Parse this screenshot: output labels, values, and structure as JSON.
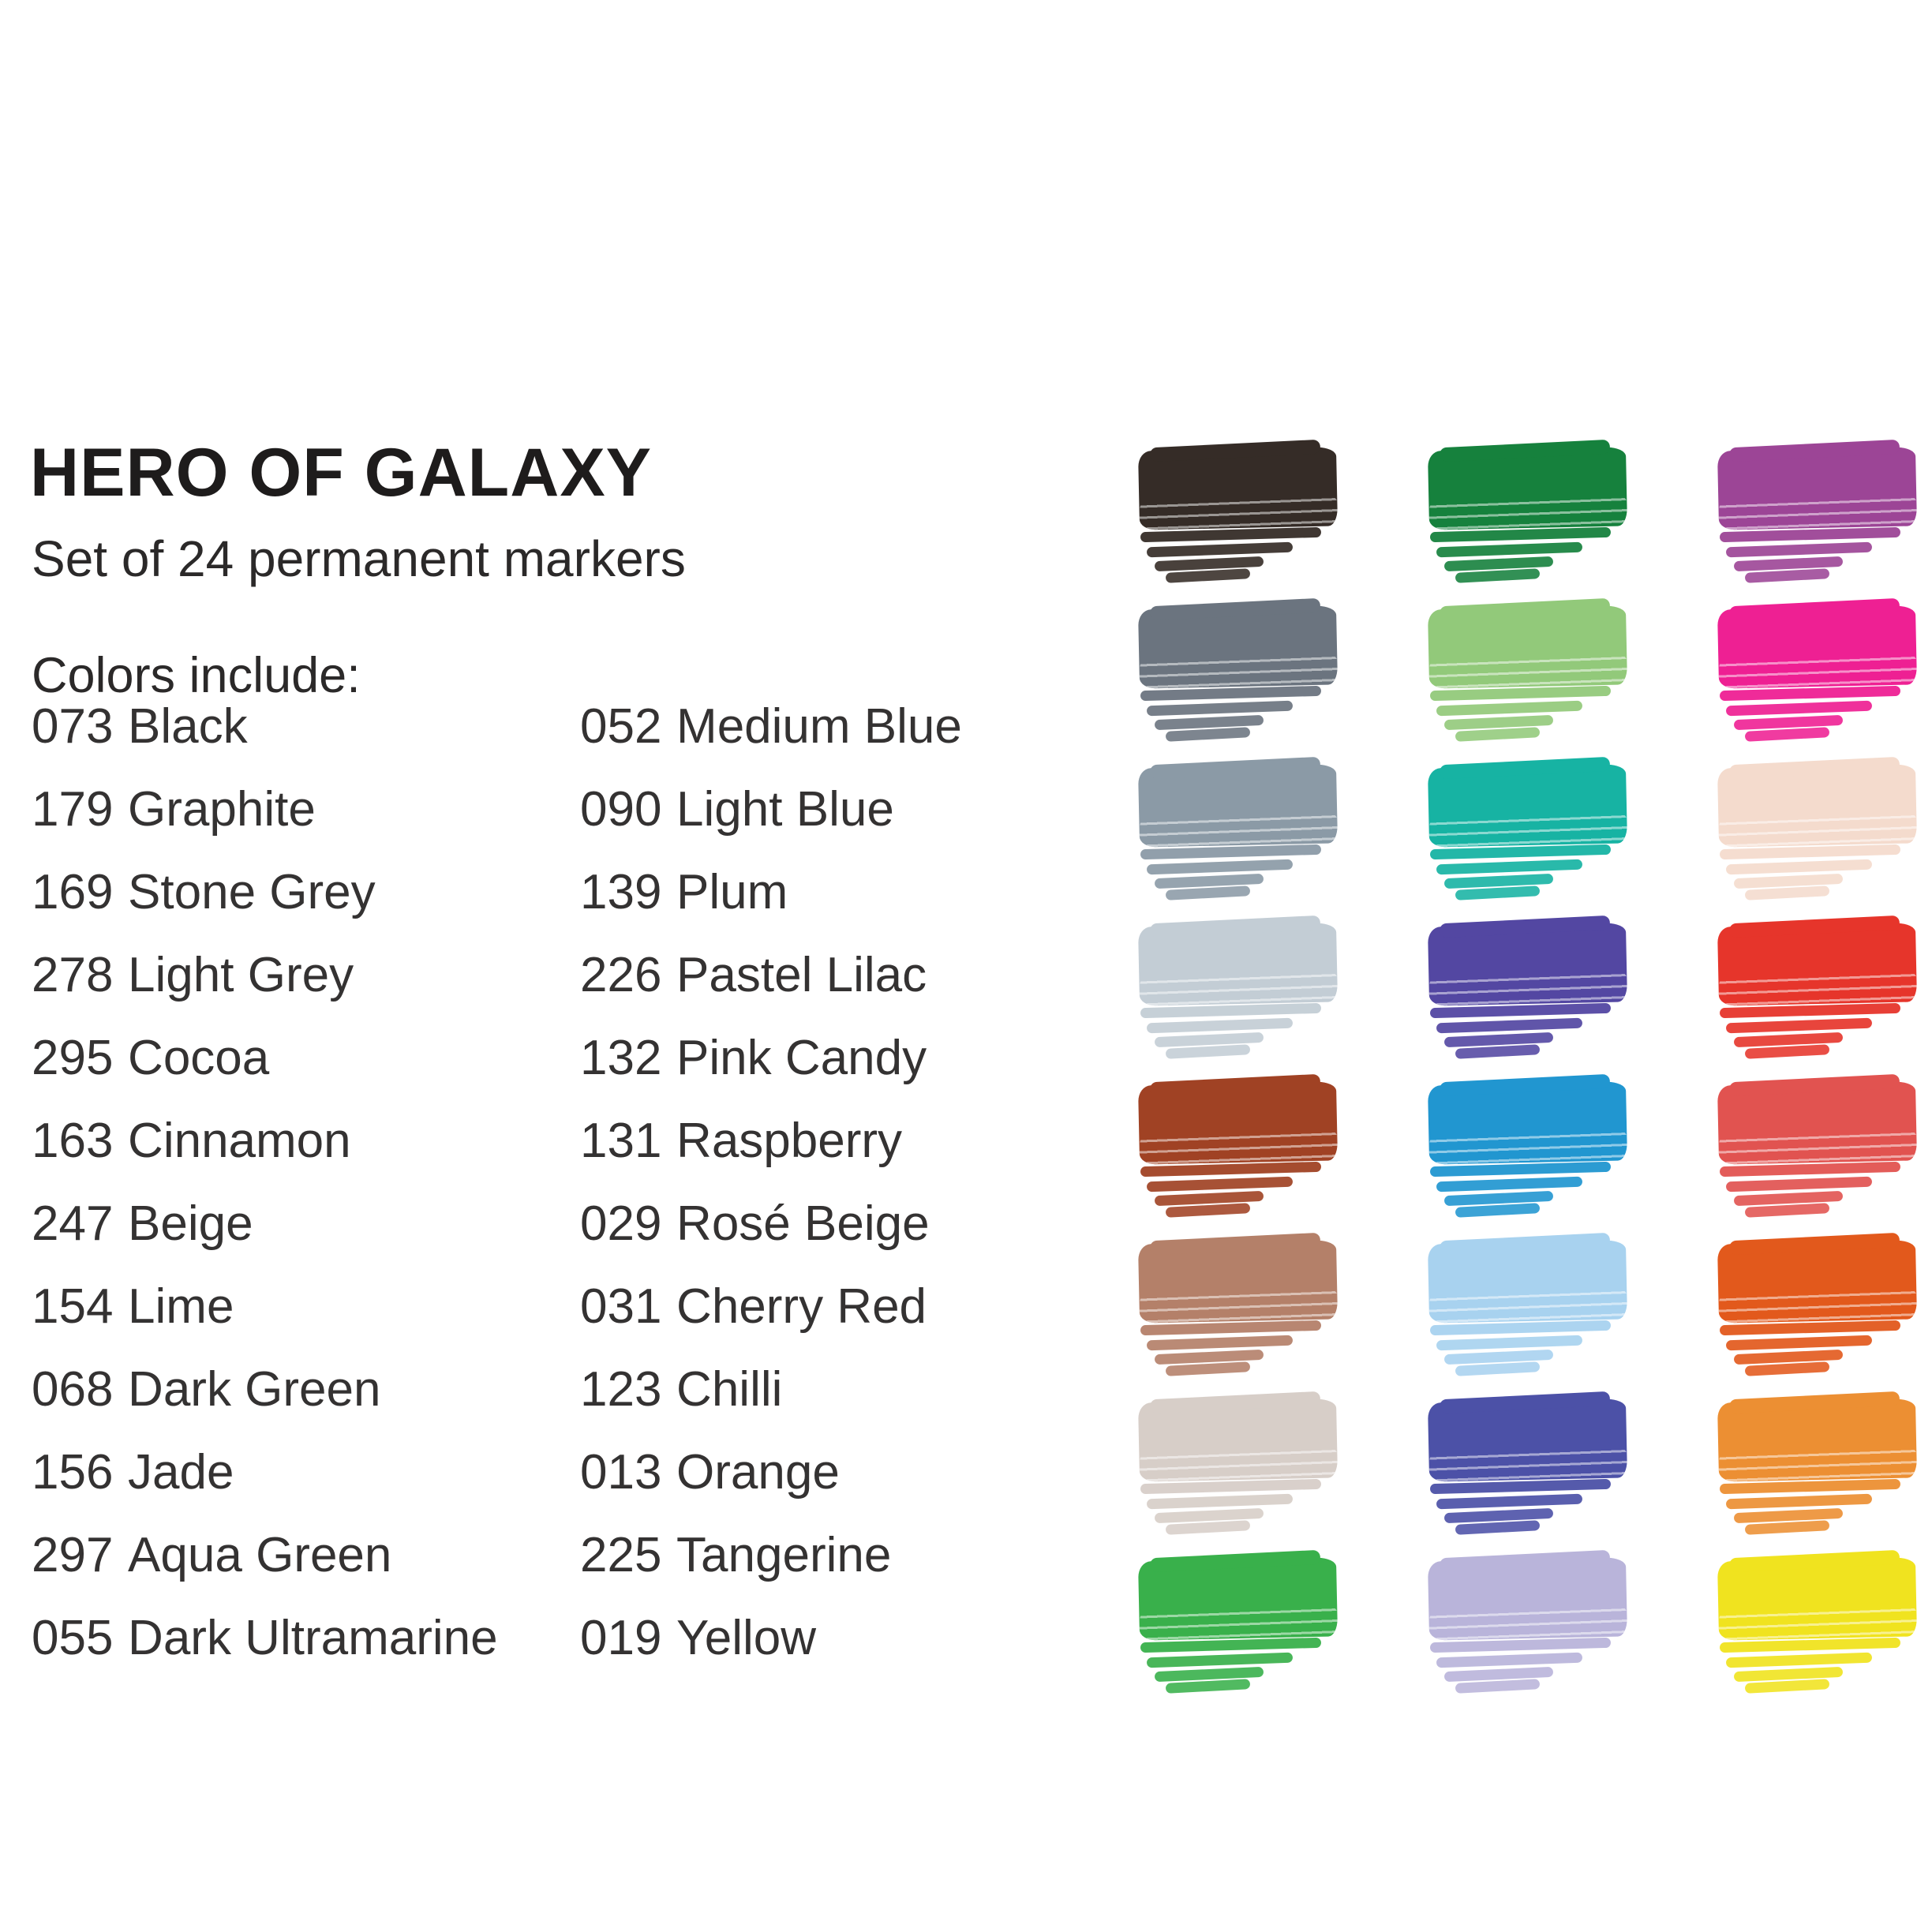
{
  "page": {
    "background": "#ffffff",
    "text_color": "#2b2929"
  },
  "header": {
    "title": "HERO OF GALAXY",
    "subtitle": "Set of 24 permanent markers",
    "colors_label": "Colors include:"
  },
  "color_list": {
    "column1": [
      {
        "code": "073",
        "name": "Black"
      },
      {
        "code": "179",
        "name": "Graphite"
      },
      {
        "code": "169",
        "name": "Stone Grey"
      },
      {
        "code": "278",
        "name": "Light Grey"
      },
      {
        "code": "295",
        "name": "Cocoa"
      },
      {
        "code": "163",
        "name": "Cinnamon"
      },
      {
        "code": "247",
        "name": "Beige"
      },
      {
        "code": "154",
        "name": "Lime"
      },
      {
        "code": "068",
        "name": "Dark Green"
      },
      {
        "code": "156",
        "name": "Jade"
      },
      {
        "code": "297",
        "name": "Aqua Green"
      },
      {
        "code": "055",
        "name": "Dark Ultramarine"
      }
    ],
    "column2": [
      {
        "code": "052",
        "name": "Medium Blue"
      },
      {
        "code": "090",
        "name": "Light Blue"
      },
      {
        "code": "139",
        "name": "Plum"
      },
      {
        "code": "226",
        "name": "Pastel Lilac"
      },
      {
        "code": "132",
        "name": "Pink Candy"
      },
      {
        "code": "131",
        "name": "Raspberry"
      },
      {
        "code": "029",
        "name": "Rosé Beige"
      },
      {
        "code": "031",
        "name": "Cherry Red"
      },
      {
        "code": "123",
        "name": "Chilli"
      },
      {
        "code": "013",
        "name": "Orange"
      },
      {
        "code": "225",
        "name": "Tangerine"
      },
      {
        "code": "019",
        "name": "Yellow"
      }
    ]
  },
  "swatch_grid": {
    "rows": 8,
    "cols": 3,
    "colors": [
      "#352c27",
      "#16813d",
      "#9c4596",
      "#6b747f",
      "#92c97a",
      "#ee2093",
      "#8b9aa6",
      "#17b3a3",
      "#f4dbcd",
      "#c3cdd5",
      "#5347a2",
      "#e6352b",
      "#a04224",
      "#2196d0",
      "#e15350",
      "#b48069",
      "#a8d2ef",
      "#e2591c",
      "#d7cec8",
      "#4c51a7",
      "#ec8f33",
      "#39b04b",
      "#b9b4da",
      "#f0e31f"
    ]
  }
}
